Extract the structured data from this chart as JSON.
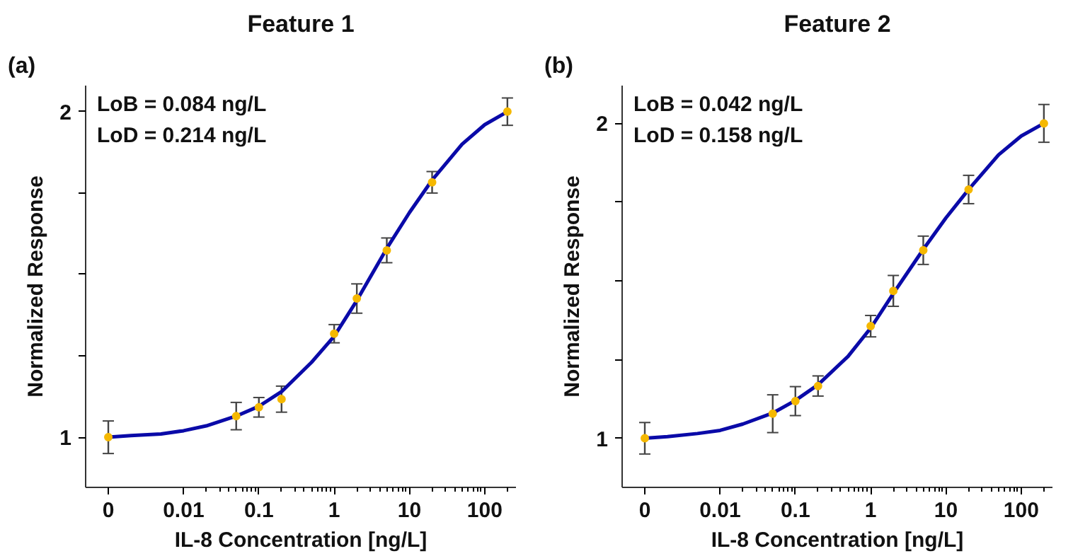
{
  "chart_data": [
    {
      "type": "scatter",
      "title": "Feature 1",
      "xlabel": "IL-8 Concentration [ng/L]",
      "ylabel": "Normalized Response",
      "annotations": [
        "(a)",
        "LoB =  0.084 ng/L",
        "LoD =  0.214 ng/L"
      ],
      "log": "x",
      "marker": "circle",
      "grid": false,
      "xlim": [
        0.0005,
        260
      ],
      "ylim": [
        0.846,
        2.08
      ],
      "xticks": [
        {
          "value": 0.001,
          "label": "0"
        },
        {
          "value": 0.01,
          "label": "0.01"
        },
        {
          "value": 0.1,
          "label": "0.1"
        },
        1,
        10,
        100,
        {
          "value": 0.02,
          "label": null
        },
        {
          "value": 0.03,
          "label": null
        },
        {
          "value": 0.04,
          "label": null
        },
        {
          "value": 0.05,
          "label": null
        },
        {
          "value": 0.06,
          "label": null
        },
        {
          "value": 0.07,
          "label": null
        },
        {
          "value": 0.08,
          "label": null
        },
        {
          "value": 0.09,
          "label": null
        },
        {
          "value": 0.2,
          "label": null
        },
        {
          "value": 0.3,
          "label": null
        },
        {
          "value": 0.4,
          "label": null
        },
        {
          "value": 0.5,
          "label": null
        },
        {
          "value": 0.6,
          "label": null
        },
        {
          "value": 0.7,
          "label": null
        },
        {
          "value": 0.8,
          "label": null
        },
        {
          "value": 0.9,
          "label": null
        },
        {
          "value": 2,
          "label": null
        },
        {
          "value": 3,
          "label": null
        },
        {
          "value": 4,
          "label": null
        },
        {
          "value": 5,
          "label": null
        },
        {
          "value": 6,
          "label": null
        },
        {
          "value": 7,
          "label": null
        },
        {
          "value": 8,
          "label": null
        },
        {
          "value": 9,
          "label": null
        },
        {
          "value": 20,
          "label": null
        },
        {
          "value": 30,
          "label": null
        },
        {
          "value": 40,
          "label": null
        },
        {
          "value": 50,
          "label": null
        },
        {
          "value": 60,
          "label": null
        },
        {
          "value": 70,
          "label": null
        },
        {
          "value": 80,
          "label": null
        },
        {
          "value": 90,
          "label": null
        },
        {
          "value": 200,
          "label": null
        }
      ],
      "yticks": [
        1,
        2,
        {
          "value": 1.25,
          "label": null
        },
        {
          "value": 1.5,
          "label": null
        },
        {
          "value": 1.75,
          "label": null
        }
      ],
      "series": [
        {
          "type": "line",
          "marker": "none",
          "color": "#0a0aa8",
          "x": [
            0.001,
            0.002,
            0.005,
            0.01,
            0.02,
            0.05,
            0.1,
            0.2,
            0.5,
            1,
            2,
            5,
            10,
            20,
            50,
            100,
            200
          ],
          "values": [
            1.0,
            1.005,
            1.01,
            1.02,
            1.035,
            1.065,
            1.095,
            1.14,
            1.23,
            1.31,
            1.42,
            1.58,
            1.69,
            1.79,
            1.9,
            1.96,
            2.0
          ]
        },
        {
          "color": "#f5b800",
          "x": [
            0.001,
            0.05,
            0.1,
            0.2,
            1,
            2,
            5,
            20,
            200
          ],
          "values": [
            1.0,
            1.065,
            1.092,
            1.117,
            1.318,
            1.426,
            1.574,
            1.783,
            2.0
          ],
          "errors": [
            0.05,
            0.042,
            0.03,
            0.04,
            0.028,
            0.045,
            0.038,
            0.033,
            0.042
          ]
        }
      ]
    },
    {
      "type": "scatter",
      "title": "Feature 2",
      "xlabel": "IL-8 Concentration [ng/L]",
      "ylabel": "Normalized Response",
      "annotations": [
        "(b)",
        "LoB =  0.042 ng/L",
        "LoD =  0.158 ng/L"
      ],
      "log": "x",
      "marker": "circle",
      "grid": false,
      "xlim": [
        0.0005,
        260
      ],
      "ylim": [
        0.844,
        2.12
      ],
      "xticks": [
        {
          "value": 0.001,
          "label": "0"
        },
        {
          "value": 0.01,
          "label": "0.01"
        },
        {
          "value": 0.1,
          "label": "0.1"
        },
        1,
        10,
        100,
        {
          "value": 0.02,
          "label": null
        },
        {
          "value": 0.03,
          "label": null
        },
        {
          "value": 0.04,
          "label": null
        },
        {
          "value": 0.05,
          "label": null
        },
        {
          "value": 0.06,
          "label": null
        },
        {
          "value": 0.07,
          "label": null
        },
        {
          "value": 0.08,
          "label": null
        },
        {
          "value": 0.09,
          "label": null
        },
        {
          "value": 0.2,
          "label": null
        },
        {
          "value": 0.3,
          "label": null
        },
        {
          "value": 0.4,
          "label": null
        },
        {
          "value": 0.5,
          "label": null
        },
        {
          "value": 0.6,
          "label": null
        },
        {
          "value": 0.7,
          "label": null
        },
        {
          "value": 0.8,
          "label": null
        },
        {
          "value": 0.9,
          "label": null
        },
        {
          "value": 2,
          "label": null
        },
        {
          "value": 3,
          "label": null
        },
        {
          "value": 4,
          "label": null
        },
        {
          "value": 5,
          "label": null
        },
        {
          "value": 6,
          "label": null
        },
        {
          "value": 7,
          "label": null
        },
        {
          "value": 8,
          "label": null
        },
        {
          "value": 9,
          "label": null
        },
        {
          "value": 20,
          "label": null
        },
        {
          "value": 30,
          "label": null
        },
        {
          "value": 40,
          "label": null
        },
        {
          "value": 50,
          "label": null
        },
        {
          "value": 60,
          "label": null
        },
        {
          "value": 70,
          "label": null
        },
        {
          "value": 80,
          "label": null
        },
        {
          "value": 90,
          "label": null
        },
        {
          "value": 200,
          "label": null
        }
      ],
      "yticks": [
        1,
        2,
        {
          "value": 1.25,
          "label": null
        },
        {
          "value": 1.5,
          "label": null
        },
        {
          "value": 1.75,
          "label": null
        }
      ],
      "series": [
        {
          "type": "line",
          "marker": "none",
          "color": "#0a0aa8",
          "x": [
            0.001,
            0.002,
            0.005,
            0.01,
            0.02,
            0.05,
            0.1,
            0.2,
            0.5,
            1,
            2,
            5,
            10,
            20,
            50,
            100,
            200
          ],
          "values": [
            1.0,
            1.005,
            1.015,
            1.025,
            1.045,
            1.08,
            1.12,
            1.17,
            1.26,
            1.35,
            1.46,
            1.6,
            1.7,
            1.79,
            1.9,
            1.96,
            2.0
          ]
        },
        {
          "color": "#f5b800",
          "x": [
            0.001,
            0.05,
            0.1,
            0.2,
            1,
            2,
            5,
            20,
            200
          ],
          "values": [
            1.0,
            1.078,
            1.118,
            1.166,
            1.356,
            1.468,
            1.597,
            1.79,
            2.0
          ],
          "errors": [
            0.05,
            0.06,
            0.046,
            0.032,
            0.034,
            0.049,
            0.045,
            0.045,
            0.06
          ]
        }
      ]
    }
  ]
}
